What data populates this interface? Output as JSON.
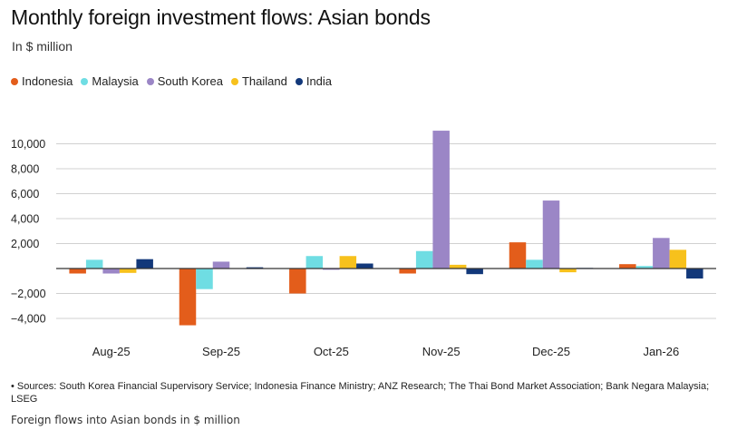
{
  "chart_data": {
    "type": "bar",
    "title": "Monthly foreign investment flows: Asian bonds",
    "subtitle": "In $ million",
    "categories": [
      "Aug-25",
      "Sep-25",
      "Oct-25",
      "Nov-25",
      "Dec-25",
      "Jan-26"
    ],
    "series": [
      {
        "name": "Indonesia",
        "color": "#e35d1b",
        "values": [
          -400,
          -4550,
          -2000,
          -400,
          2100,
          350
        ]
      },
      {
        "name": "Malaysia",
        "color": "#6fdde3",
        "values": [
          700,
          -1650,
          1000,
          1400,
          700,
          200
        ]
      },
      {
        "name": "South Korea",
        "color": "#9b86c6",
        "values": [
          -400,
          550,
          -100,
          11050,
          5450,
          2450
        ]
      },
      {
        "name": "Thailand",
        "color": "#f7c11c",
        "values": [
          -350,
          0,
          1000,
          300,
          -300,
          1500
        ]
      },
      {
        "name": "India",
        "color": "#12387a",
        "values": [
          750,
          100,
          400,
          -450,
          50,
          -800
        ]
      }
    ],
    "ylim": [
      -5000,
      12000
    ],
    "yticks": [
      10000,
      8000,
      6000,
      4000,
      2000,
      0,
      -2000,
      -4000
    ],
    "ytick_labels": [
      "10,000",
      "8,000",
      "6,000",
      "4,000",
      "2,000",
      "",
      "−2,000",
      "−4,000"
    ],
    "grid": true,
    "legend_position": "top-left"
  },
  "legend_labels": [
    "Indonesia",
    "Malaysia",
    "South Korea",
    "Thailand",
    "India"
  ],
  "source_note": "• Sources: South Korea Financial Supervisory Service; Indonesia Finance Ministry; ANZ Research; The Thai Bond Market Association; Bank Negara Malaysia; LSEG",
  "footer_caption": "Foreign flows into Asian bonds in $ million"
}
